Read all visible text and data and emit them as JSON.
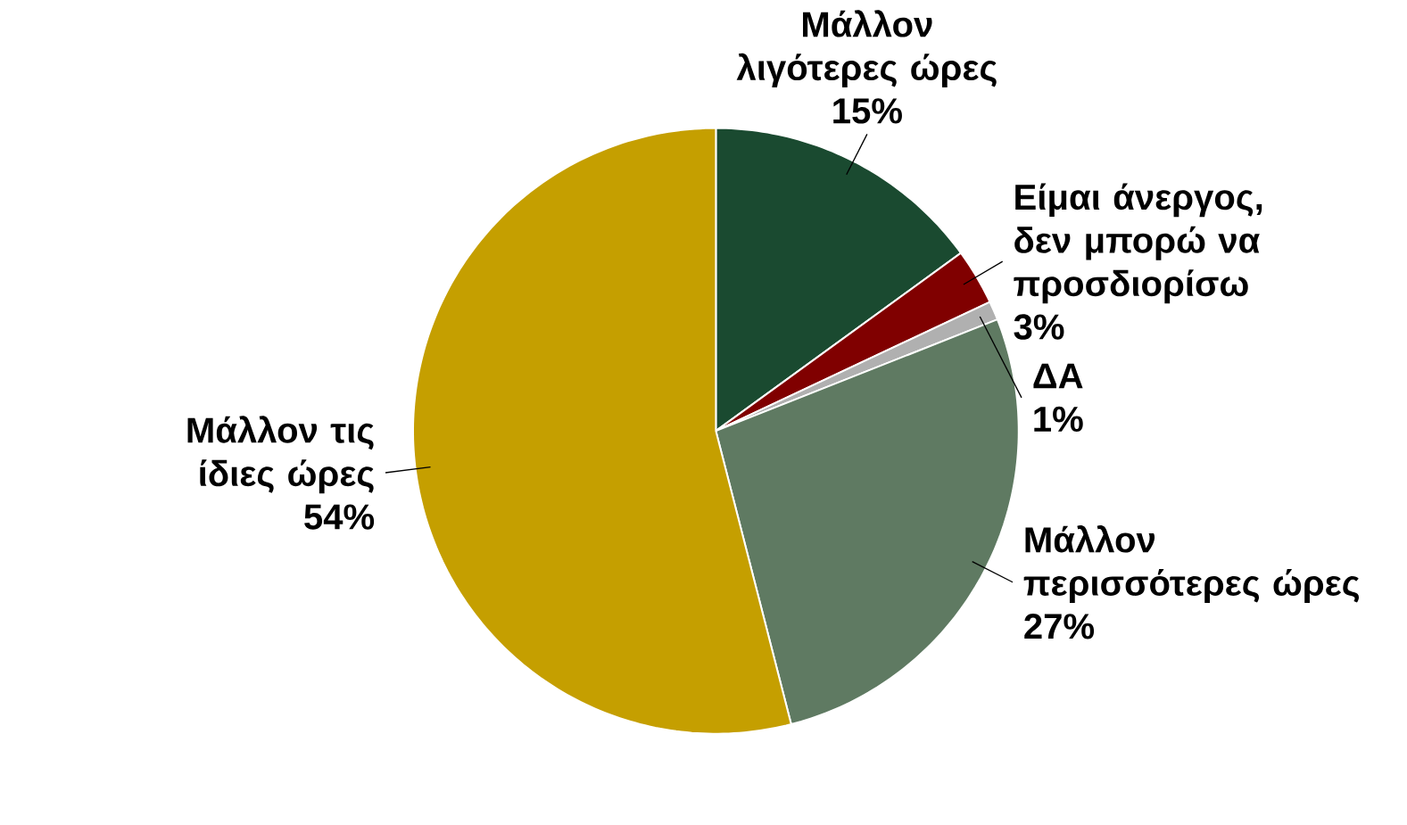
{
  "chart_data": {
    "type": "pie",
    "categories": [
      "Μάλλον λιγότερες ώρες",
      "Είμαι άνεργος, δεν μπορώ να προσδιορίσω",
      "ΔΑ",
      "Μάλλον περισσότερες ώρες",
      "Μάλλον τις ίδιες ώρες"
    ],
    "values": [
      15,
      3,
      1,
      27,
      54
    ],
    "value_labels": [
      "15%",
      "3%",
      "1%",
      "27%",
      "54%"
    ],
    "colors": [
      "#1a4a30",
      "#800000",
      "#b0b0b0",
      "#5f7a62",
      "#c59f00"
    ]
  }
}
